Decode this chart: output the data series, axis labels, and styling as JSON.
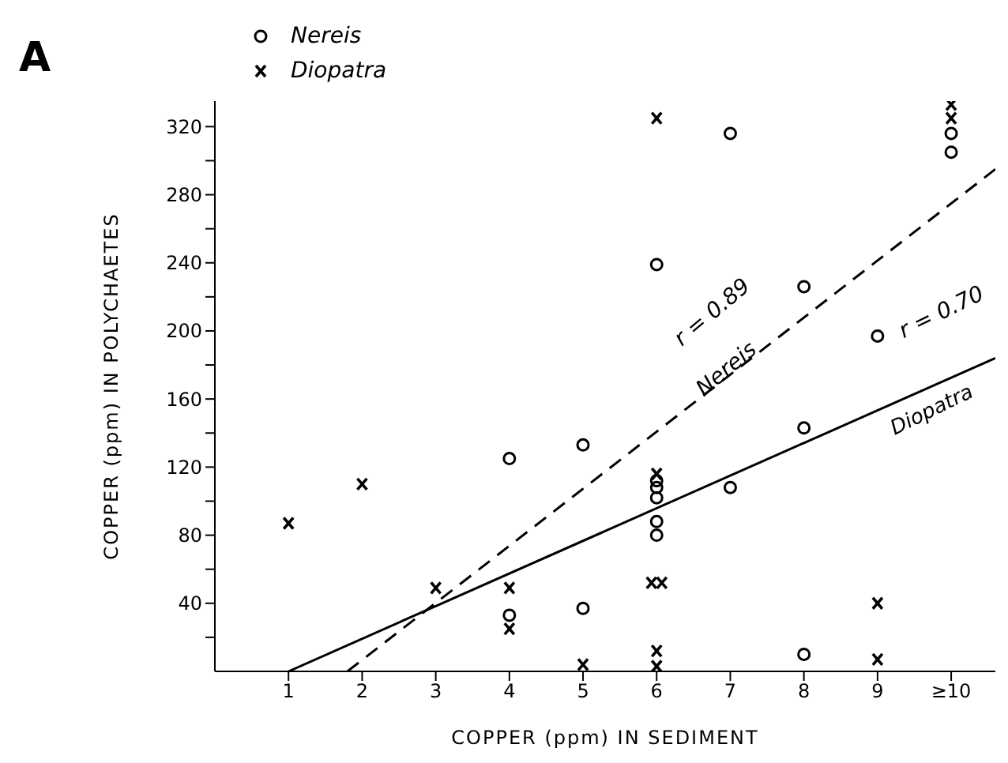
{
  "chart_data": {
    "type": "scatter",
    "xlabel": "COPPER (ppm) IN SEDIMENT",
    "ylabel": "COPPER (ppm) IN POLYCHAETES",
    "xlim": [
      0,
      10.6
    ],
    "ylim": [
      0,
      335
    ],
    "xticks": [
      1,
      2,
      3,
      4,
      5,
      6,
      7,
      8,
      9,
      {
        "value": 10,
        "label": "≥10"
      }
    ],
    "yticks": [
      {
        "value": 20,
        "label": null
      },
      40,
      {
        "value": 60,
        "label": null
      },
      80,
      {
        "value": 100,
        "label": null
      },
      120,
      {
        "value": 140,
        "label": null
      },
      160,
      {
        "value": 180,
        "label": null
      },
      200,
      {
        "value": 220,
        "label": null
      },
      240,
      {
        "value": 260,
        "label": null
      },
      280,
      {
        "value": 300,
        "label": null
      },
      320
    ],
    "legend": "top left",
    "grid": false,
    "series": [
      {
        "name": "Nereis",
        "marker": "circle",
        "color": "#000000",
        "x": [
          4,
          4,
          5,
          5,
          6,
          6,
          6,
          6,
          6,
          6,
          7,
          7,
          8,
          8,
          8,
          9,
          10,
          10
        ],
        "values": [
          125,
          33,
          133,
          37,
          239,
          112,
          108,
          102,
          88,
          80,
          316,
          108,
          226,
          143,
          10,
          197,
          316,
          305
        ]
      },
      {
        "name": "Diopatra",
        "marker": "cross",
        "color": "#000000",
        "x": [
          1,
          2,
          3,
          4,
          4,
          5,
          6,
          6,
          5.93,
          6.07,
          6,
          6,
          9,
          9,
          10,
          10
        ],
        "values": [
          87,
          110,
          49,
          49,
          25,
          4,
          325,
          116,
          52,
          52,
          12,
          3,
          40,
          7,
          333,
          325
        ]
      },
      {
        "type": "line",
        "marker": "none",
        "line_style": "dashed",
        "color": "#000000",
        "x": [
          1.8,
          10.6
        ],
        "values": [
          0,
          295
        ]
      },
      {
        "type": "line",
        "marker": "none",
        "line_style": "solid",
        "color": "#000000",
        "x": [
          1,
          10.6
        ],
        "values": [
          0,
          184
        ]
      }
    ],
    "annotations": [
      "A",
      "r = 0.89",
      "Nereis",
      "r = 0.70",
      "Diopatra"
    ]
  }
}
